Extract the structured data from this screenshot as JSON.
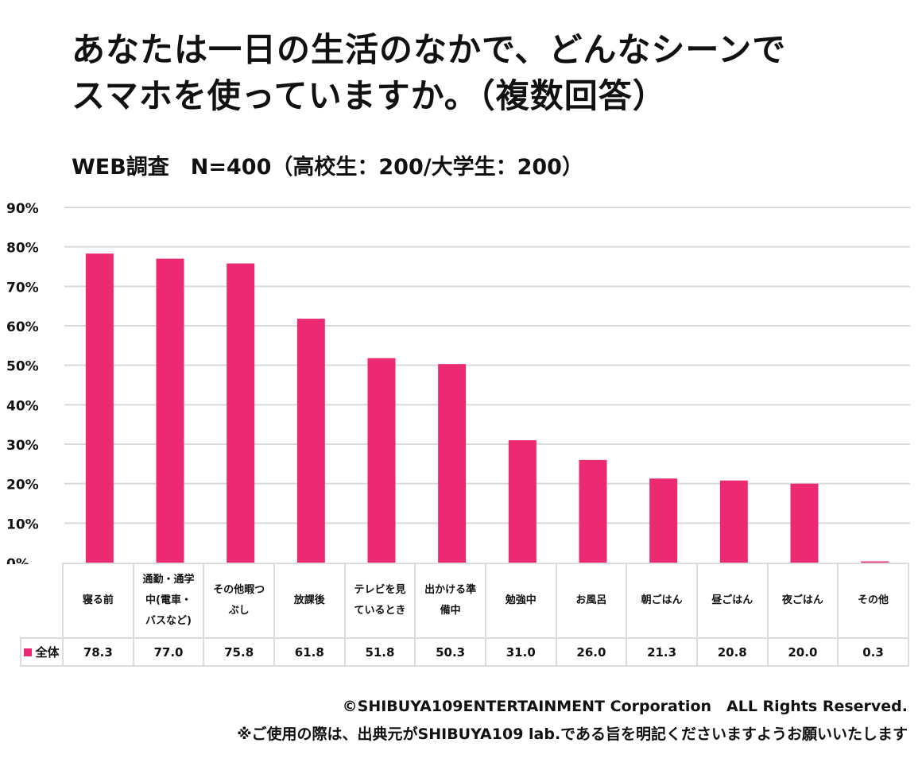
{
  "title_lines": [
    "あなたは一日の生活のなかで、どんなシーンで",
    "スマホを使っていますか。（複数回答）"
  ],
  "subtitle": "WEB調査　N=400（高校生：200/大学生：200）",
  "chart_data": {
    "type": "bar",
    "title": "あなたは一日の生活のなかで、どんなシーンでスマホを使っていますか。（複数回答）",
    "subtitle": "WEB調査　N=400（高校生：200/大学生：200）",
    "xlabel": "",
    "ylabel": "",
    "ylim": [
      0,
      90
    ],
    "yticks": [
      0,
      10,
      20,
      30,
      40,
      50,
      60,
      70,
      80,
      90
    ],
    "ytick_labels": [
      "0%",
      "10%",
      "20%",
      "30%",
      "40%",
      "50%",
      "60%",
      "70%",
      "80%",
      "90%"
    ],
    "grid": true,
    "categories": [
      "寝る前",
      "通勤・通学中(電車・バスなど)",
      "その他暇つぶし",
      "放課後",
      "テレビを見ているとき",
      "出かける準備中",
      "勉強中",
      "お風呂",
      "朝ごはん",
      "昼ごはん",
      "夜ごはん",
      "その他"
    ],
    "category_display_lines": [
      [
        "寝る前"
      ],
      [
        "通勤・通学",
        "中(電車・",
        "バスなど)"
      ],
      [
        "その他暇つ",
        "ぶし"
      ],
      [
        "放課後"
      ],
      [
        "テレビを見",
        "ているとき"
      ],
      [
        "出かける準",
        "備中"
      ],
      [
        "勉強中"
      ],
      [
        "お風呂"
      ],
      [
        "朝ごはん"
      ],
      [
        "昼ごはん"
      ],
      [
        "夜ごはん"
      ],
      [
        "その他"
      ]
    ],
    "series": [
      {
        "name": "全体",
        "color": "#EC2A71",
        "values": [
          78.3,
          77.0,
          75.8,
          61.8,
          51.8,
          50.3,
          31.0,
          26.0,
          21.3,
          20.8,
          20.0,
          0.3
        ],
        "value_labels": [
          "78.3",
          "77.0",
          "75.8",
          "61.8",
          "51.8",
          "50.3",
          "31.0",
          "26.0",
          "21.3",
          "20.8",
          "20.0",
          "0.3"
        ]
      }
    ],
    "legend": "data-table-left"
  },
  "footer": {
    "copyright": "©SHIBUYA109ENTERTAINMENT Corporation　ALL Rights Reserved.",
    "notice": "※ご使用の際は、出典元がSHIBUYA109 lab.である旨を明記くださいますようお願いいたします"
  }
}
